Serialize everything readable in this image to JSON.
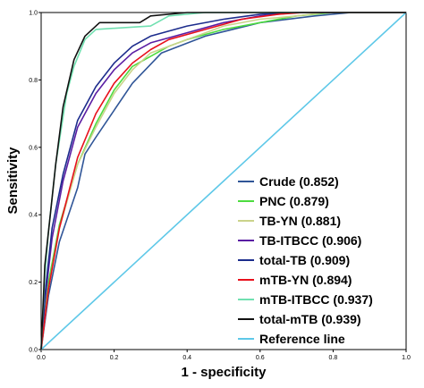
{
  "chart_data": {
    "type": "line",
    "title": "",
    "xlabel": "1 - specificity",
    "ylabel": "Sensitivity",
    "xlim": [
      0,
      1
    ],
    "ylim": [
      0,
      1
    ],
    "x_ticks": [
      "0.0",
      "0.2",
      "0.4",
      "0.6",
      "0.8",
      "1.0"
    ],
    "y_ticks": [
      "0.0",
      "0.2",
      "0.4",
      "0.6",
      "0.8",
      "1.0"
    ],
    "grid": false,
    "legend_position": "bottom-right",
    "series": [
      {
        "name": "Crude (0.852)",
        "color": "#2f5597",
        "points": [
          [
            0,
            0
          ],
          [
            0.02,
            0.16
          ],
          [
            0.05,
            0.32
          ],
          [
            0.1,
            0.48
          ],
          [
            0.12,
            0.58
          ],
          [
            0.15,
            0.63
          ],
          [
            0.25,
            0.79
          ],
          [
            0.33,
            0.88
          ],
          [
            0.45,
            0.93
          ],
          [
            0.6,
            0.97
          ],
          [
            0.75,
            0.99
          ],
          [
            0.85,
            1.0
          ],
          [
            1,
            1
          ]
        ]
      },
      {
        "name": "PNC (0.879)",
        "color": "#4ddc3f",
        "points": [
          [
            0,
            0
          ],
          [
            0.02,
            0.2
          ],
          [
            0.05,
            0.37
          ],
          [
            0.1,
            0.55
          ],
          [
            0.15,
            0.67
          ],
          [
            0.2,
            0.77
          ],
          [
            0.25,
            0.84
          ],
          [
            0.35,
            0.9
          ],
          [
            0.4,
            0.92
          ],
          [
            0.5,
            0.95
          ],
          [
            0.6,
            0.97
          ],
          [
            0.7,
            0.99
          ],
          [
            0.8,
            1.0
          ],
          [
            1,
            1
          ]
        ]
      },
      {
        "name": "TB-YN (0.881)",
        "color": "#cad38a",
        "points": [
          [
            0,
            0
          ],
          [
            0.02,
            0.18
          ],
          [
            0.05,
            0.36
          ],
          [
            0.1,
            0.55
          ],
          [
            0.15,
            0.66
          ],
          [
            0.2,
            0.76
          ],
          [
            0.25,
            0.83
          ],
          [
            0.3,
            0.88
          ],
          [
            0.4,
            0.92
          ],
          [
            0.5,
            0.96
          ],
          [
            0.6,
            0.98
          ],
          [
            0.7,
            0.99
          ],
          [
            0.78,
            1.0
          ],
          [
            1,
            1
          ]
        ]
      },
      {
        "name": "TB-ITBCC (0.906)",
        "color": "#5a1ea3",
        "points": [
          [
            0,
            0
          ],
          [
            0.01,
            0.14
          ],
          [
            0.03,
            0.33
          ],
          [
            0.06,
            0.5
          ],
          [
            0.1,
            0.66
          ],
          [
            0.15,
            0.76
          ],
          [
            0.2,
            0.83
          ],
          [
            0.25,
            0.88
          ],
          [
            0.3,
            0.91
          ],
          [
            0.4,
            0.94
          ],
          [
            0.5,
            0.97
          ],
          [
            0.6,
            0.99
          ],
          [
            0.7,
            1.0
          ],
          [
            1,
            1
          ]
        ]
      },
      {
        "name": "total-TB (0.909)",
        "color": "#1c2c8c",
        "points": [
          [
            0,
            0
          ],
          [
            0.01,
            0.16
          ],
          [
            0.03,
            0.36
          ],
          [
            0.06,
            0.52
          ],
          [
            0.1,
            0.68
          ],
          [
            0.15,
            0.78
          ],
          [
            0.2,
            0.85
          ],
          [
            0.25,
            0.9
          ],
          [
            0.3,
            0.93
          ],
          [
            0.4,
            0.96
          ],
          [
            0.5,
            0.98
          ],
          [
            0.6,
            0.995
          ],
          [
            0.7,
            1.0
          ],
          [
            1,
            1
          ]
        ]
      },
      {
        "name": "mTB-YN (0.894)",
        "color": "#e8101c",
        "points": [
          [
            0,
            0
          ],
          [
            0.02,
            0.18
          ],
          [
            0.05,
            0.36
          ],
          [
            0.1,
            0.57
          ],
          [
            0.15,
            0.7
          ],
          [
            0.2,
            0.79
          ],
          [
            0.25,
            0.85
          ],
          [
            0.3,
            0.89
          ],
          [
            0.35,
            0.92
          ],
          [
            0.45,
            0.95
          ],
          [
            0.55,
            0.98
          ],
          [
            0.65,
            0.995
          ],
          [
            0.72,
            1.0
          ],
          [
            1,
            1
          ]
        ]
      },
      {
        "name": "mTB-ITBCC (0.937)",
        "color": "#70e0b0",
        "points": [
          [
            0,
            0
          ],
          [
            0.01,
            0.22
          ],
          [
            0.02,
            0.35
          ],
          [
            0.04,
            0.55
          ],
          [
            0.07,
            0.76
          ],
          [
            0.09,
            0.84
          ],
          [
            0.12,
            0.92
          ],
          [
            0.15,
            0.95
          ],
          [
            0.3,
            0.96
          ],
          [
            0.35,
            0.99
          ],
          [
            0.45,
            1.0
          ],
          [
            1,
            1
          ]
        ]
      },
      {
        "name": "total-mTB (0.939)",
        "color": "#111111",
        "points": [
          [
            0,
            0
          ],
          [
            0.01,
            0.25
          ],
          [
            0.02,
            0.35
          ],
          [
            0.04,
            0.55
          ],
          [
            0.06,
            0.72
          ],
          [
            0.09,
            0.86
          ],
          [
            0.12,
            0.93
          ],
          [
            0.16,
            0.97
          ],
          [
            0.27,
            0.97
          ],
          [
            0.3,
            0.99
          ],
          [
            0.4,
            1.0
          ],
          [
            1,
            1
          ]
        ]
      },
      {
        "name": "Reference line",
        "color": "#5ec8e8",
        "points": [
          [
            0,
            0
          ],
          [
            1,
            1
          ]
        ]
      }
    ]
  }
}
